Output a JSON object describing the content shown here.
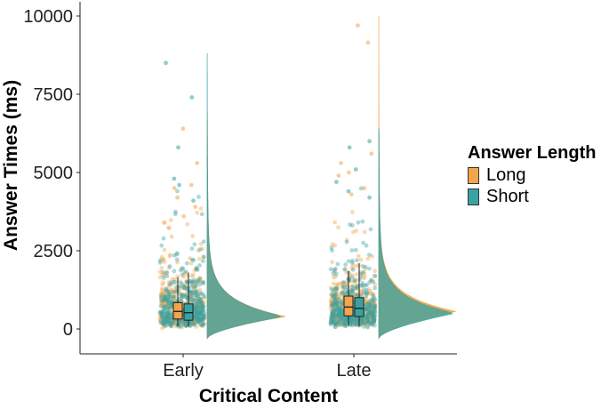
{
  "chart_data": {
    "type": "raincloud",
    "xlabel": "Critical Content",
    "ylabel": "Answer Times (ms)",
    "categories": [
      "Early",
      "Late"
    ],
    "ylim": [
      -300,
      10400
    ],
    "yticks": [
      0,
      2500,
      5000,
      7500,
      10000
    ],
    "grid": false,
    "legend": {
      "title": "Answer Length",
      "position": "right"
    },
    "series": [
      {
        "name": "Long",
        "color": "#F3A54B",
        "box": {
          "Early": {
            "min": 100,
            "q1": 320,
            "median": 560,
            "q3": 840,
            "max": 1650
          },
          "Late": {
            "min": 100,
            "q1": 420,
            "median": 700,
            "q3": 1050,
            "max": 1850
          }
        },
        "density_peak": {
          "Early": 400,
          "Late": 550
        },
        "density_max": {
          "Early": 6700,
          "Late": 10000
        },
        "outliers": {
          "Early": [
            6400,
            5300,
            4600,
            4500,
            4200,
            3900,
            3600
          ],
          "Late": [
            9700,
            9150,
            5600,
            5300,
            5000,
            4900,
            4500,
            4300
          ]
        }
      },
      {
        "name": "Short",
        "color": "#3AA3A2",
        "box": {
          "Early": {
            "min": 80,
            "q1": 280,
            "median": 520,
            "q3": 800,
            "max": 1800
          },
          "Late": {
            "min": 80,
            "q1": 400,
            "median": 660,
            "q3": 1000,
            "max": 2100
          }
        },
        "density_peak": {
          "Early": 400,
          "Late": 500
        },
        "density_max": {
          "Early": 8800,
          "Late": 6400
        },
        "outliers": {
          "Early": [
            8500,
            7400,
            5800,
            4800,
            4600,
            4100
          ],
          "Late": [
            6000,
            5800,
            5100,
            4700,
            4400,
            4200
          ]
        }
      }
    ]
  }
}
